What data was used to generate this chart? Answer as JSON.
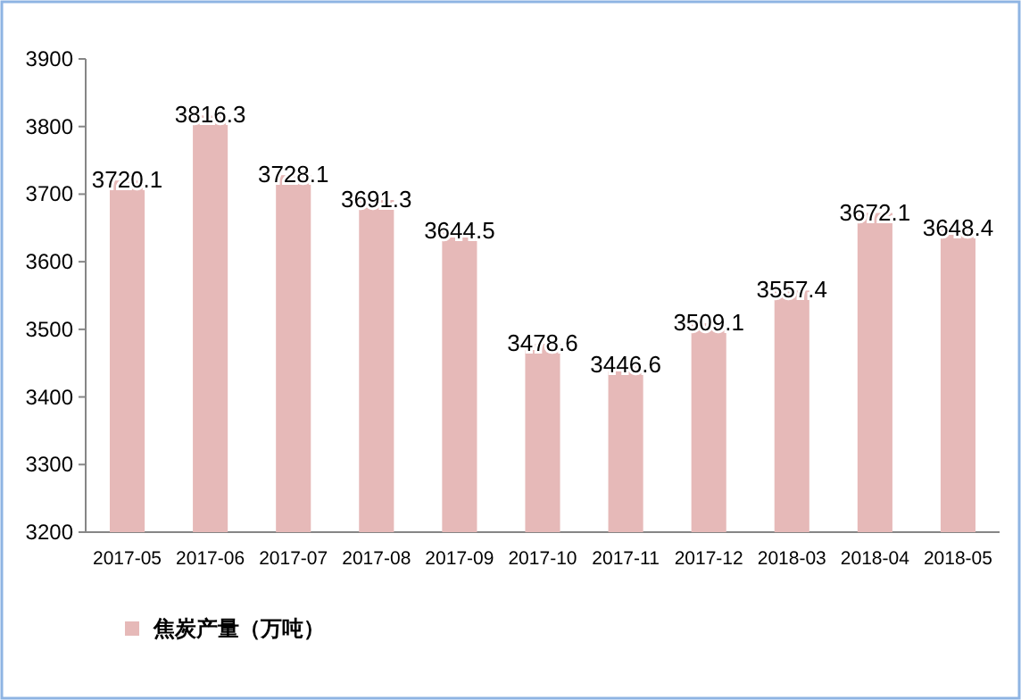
{
  "chart_data": {
    "type": "bar",
    "categories": [
      "2017-05",
      "2017-06",
      "2017-07",
      "2017-08",
      "2017-09",
      "2017-10",
      "2017-11",
      "2017-12",
      "2018-03",
      "2018-04",
      "2018-05"
    ],
    "series": [
      {
        "name": "焦炭产量（万吨）",
        "color": "#e6b9b8",
        "values": [
          3720.1,
          3816.3,
          3728.1,
          3691.3,
          3644.5,
          3478.6,
          3446.6,
          3509.1,
          3557.4,
          3672.1,
          3648.4
        ]
      }
    ],
    "ylim": [
      3200,
      3900
    ],
    "yticks": [
      3200,
      3300,
      3400,
      3500,
      3600,
      3700,
      3800,
      3900
    ],
    "data_labels": true,
    "legend": "bottom left",
    "grid": false
  }
}
